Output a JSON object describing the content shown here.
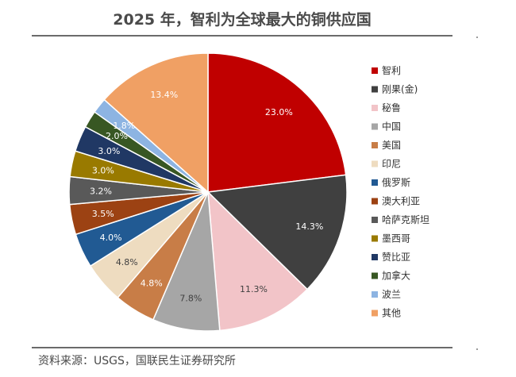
{
  "title": "2025 年，智利为全球最大的铜供应国",
  "source": "资料来源：USGS，国联民生证券研究所",
  "chart_data": {
    "type": "pie",
    "start_angle_deg": 0,
    "direction": "clockwise",
    "legend_position": "right",
    "slices": [
      {
        "name": "智利",
        "value": 23.0,
        "label": "23.0%",
        "color": "#C00000",
        "label_color": "#ffffff"
      },
      {
        "name": "刚果(金)",
        "value": 14.3,
        "label": "14.3%",
        "color": "#404040",
        "label_color": "#ffffff"
      },
      {
        "name": "秘鲁",
        "value": 11.3,
        "label": "11.3%",
        "color": "#F2C4C8",
        "label_color": "#404040"
      },
      {
        "name": "中国",
        "value": 7.8,
        "label": "7.8%",
        "color": "#A6A6A6",
        "label_color": "#404040"
      },
      {
        "name": "美国",
        "value": 4.8,
        "label": "4.8%",
        "color": "#C87D47",
        "label_color": "#ffffff"
      },
      {
        "name": "印尼",
        "value": 4.8,
        "label": "4.8%",
        "color": "#EEDCC0",
        "label_color": "#404040"
      },
      {
        "name": "俄罗斯",
        "value": 4.0,
        "label": "4.0%",
        "color": "#215A93",
        "label_color": "#ffffff"
      },
      {
        "name": "澳大利亚",
        "value": 3.5,
        "label": "3.5%",
        "color": "#9C4213",
        "label_color": "#ffffff"
      },
      {
        "name": "哈萨克斯坦",
        "value": 3.2,
        "label": "3.2%",
        "color": "#595959",
        "label_color": "#ffffff"
      },
      {
        "name": "墨西哥",
        "value": 3.0,
        "label": "3.0%",
        "color": "#997A00",
        "label_color": "#ffffff"
      },
      {
        "name": "赞比亚",
        "value": 3.0,
        "label": "3.0%",
        "color": "#203864",
        "label_color": "#ffffff"
      },
      {
        "name": "加拿大",
        "value": 2.0,
        "label": "2.0%",
        "color": "#385723",
        "label_color": "#ffffff"
      },
      {
        "name": "波兰",
        "value": 1.8,
        "label": "1.8%",
        "color": "#8DB4E2",
        "label_color": "#ffffff"
      },
      {
        "name": "其他",
        "value": 13.4,
        "label": "13.4%",
        "color": "#F0A064",
        "label_color": "#ffffff"
      }
    ]
  }
}
